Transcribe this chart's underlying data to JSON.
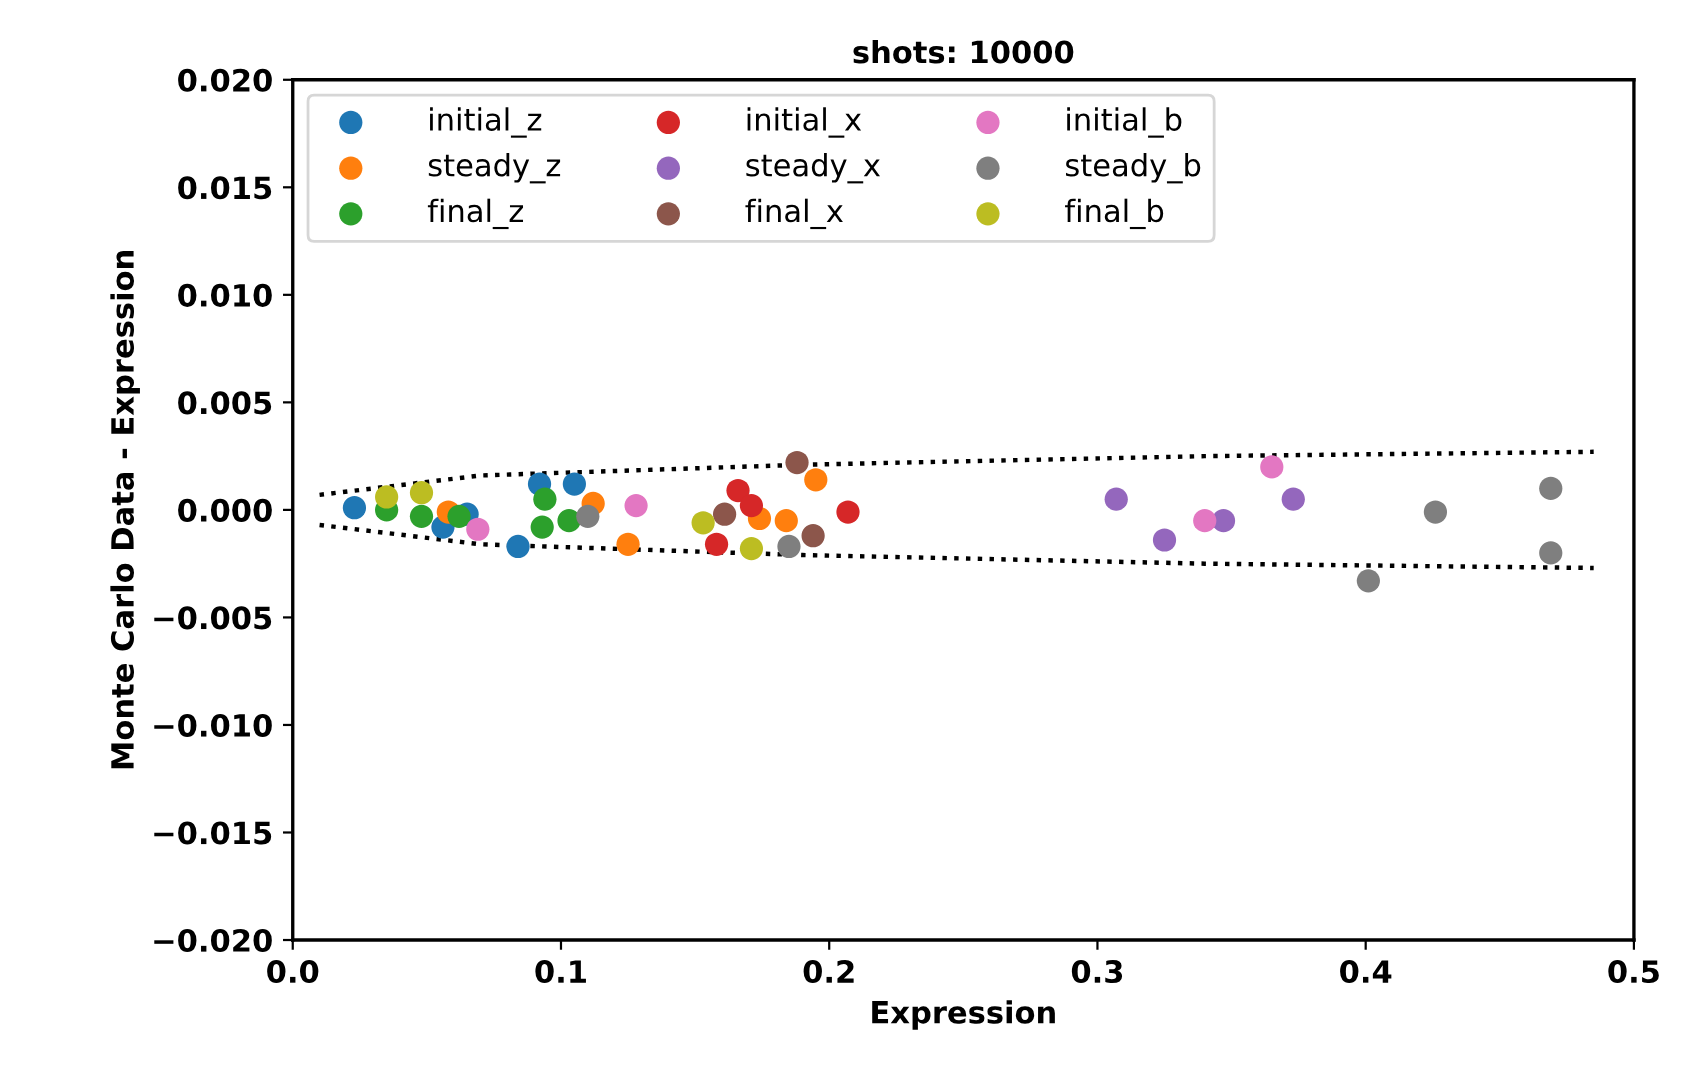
{
  "chart_data": {
    "type": "scatter",
    "title": "shots: 10000",
    "xlabel": "Expression",
    "ylabel": "Monte Carlo Data - Expression",
    "xlim": [
      0.0,
      0.5
    ],
    "xticks": [
      {
        "value": 0.0,
        "label": "0.0"
      },
      {
        "value": 0.1,
        "label": "0.1"
      },
      {
        "value": 0.2,
        "label": "0.2"
      },
      {
        "value": 0.3,
        "label": "0.3"
      },
      {
        "value": 0.4,
        "label": "0.4"
      },
      {
        "value": 0.5,
        "label": "0.5"
      }
    ],
    "ylim": [
      -0.02,
      0.02
    ],
    "yticks": [
      {
        "value": -0.02,
        "label": "−0.020"
      },
      {
        "value": -0.015,
        "label": "−0.015"
      },
      {
        "value": -0.01,
        "label": "−0.010"
      },
      {
        "value": -0.005,
        "label": "−0.005"
      },
      {
        "value": 0.0,
        "label": "0.000"
      },
      {
        "value": 0.005,
        "label": "0.005"
      },
      {
        "value": 0.01,
        "label": "0.010"
      },
      {
        "value": 0.015,
        "label": "0.015"
      },
      {
        "value": 0.02,
        "label": "0.020"
      }
    ],
    "grid": false,
    "legend": "top left",
    "marker": "circle",
    "series": [
      {
        "name": "initial_z",
        "color": "#1f77b4",
        "x": [
          0.023,
          0.056,
          0.084,
          0.092,
          0.105,
          0.065
        ],
        "values": [
          0.0001,
          -0.0008,
          -0.0017,
          0.0012,
          0.0012,
          -0.0002
        ]
      },
      {
        "name": "steady_z",
        "color": "#ff7f0e",
        "x": [
          0.058,
          0.112,
          0.125,
          0.174,
          0.184,
          0.195
        ],
        "values": [
          -0.0001,
          0.0003,
          -0.0016,
          -0.0004,
          -0.0005,
          0.0014
        ]
      },
      {
        "name": "final_z",
        "color": "#2ca02c",
        "x": [
          0.035,
          0.048,
          0.062,
          0.094,
          0.093,
          0.103
        ],
        "values": [
          0.0,
          -0.0003,
          -0.0003,
          0.0005,
          -0.0008,
          -0.0005
        ]
      },
      {
        "name": "initial_x",
        "color": "#d62728",
        "x": [
          0.166,
          0.171,
          0.158,
          0.207
        ],
        "values": [
          0.0009,
          0.0002,
          -0.0016,
          -0.0001
        ]
      },
      {
        "name": "steady_x",
        "color": "#9467bd",
        "x": [
          0.307,
          0.325,
          0.347,
          0.373
        ],
        "values": [
          0.0005,
          -0.0014,
          -0.0005,
          0.0005
        ]
      },
      {
        "name": "final_x",
        "color": "#8c564b",
        "x": [
          0.188,
          0.161,
          0.194
        ],
        "values": [
          0.0022,
          -0.0002,
          -0.0012
        ]
      },
      {
        "name": "initial_b",
        "color": "#e377c2",
        "x": [
          0.069,
          0.128,
          0.34,
          0.365
        ],
        "values": [
          -0.0009,
          0.0002,
          -0.0005,
          0.002
        ]
      },
      {
        "name": "steady_b",
        "color": "#7f7f7f",
        "x": [
          0.11,
          0.185,
          0.401,
          0.426,
          0.469,
          0.469
        ],
        "values": [
          -0.0003,
          -0.0017,
          -0.0033,
          -0.0001,
          0.001,
          -0.002
        ]
      },
      {
        "name": "final_b",
        "color": "#bcbd22",
        "x": [
          0.035,
          0.048,
          0.153,
          0.171
        ],
        "values": [
          0.0006,
          0.0008,
          -0.0006,
          -0.0018
        ]
      },
      {
        "type": "line",
        "color": "#000000",
        "line_style": "dotted",
        "marker": "none",
        "x": [
          0.01,
          0.07,
          0.19,
          0.34,
          0.485
        ],
        "values": [
          0.0007,
          0.0016,
          0.0021,
          0.0025,
          0.0027
        ]
      },
      {
        "type": "line",
        "color": "#000000",
        "line_style": "dotted",
        "marker": "none",
        "x": [
          0.01,
          0.07,
          0.19,
          0.34,
          0.485
        ],
        "values": [
          -0.0007,
          -0.0016,
          -0.0021,
          -0.0025,
          -0.0027
        ]
      }
    ]
  }
}
